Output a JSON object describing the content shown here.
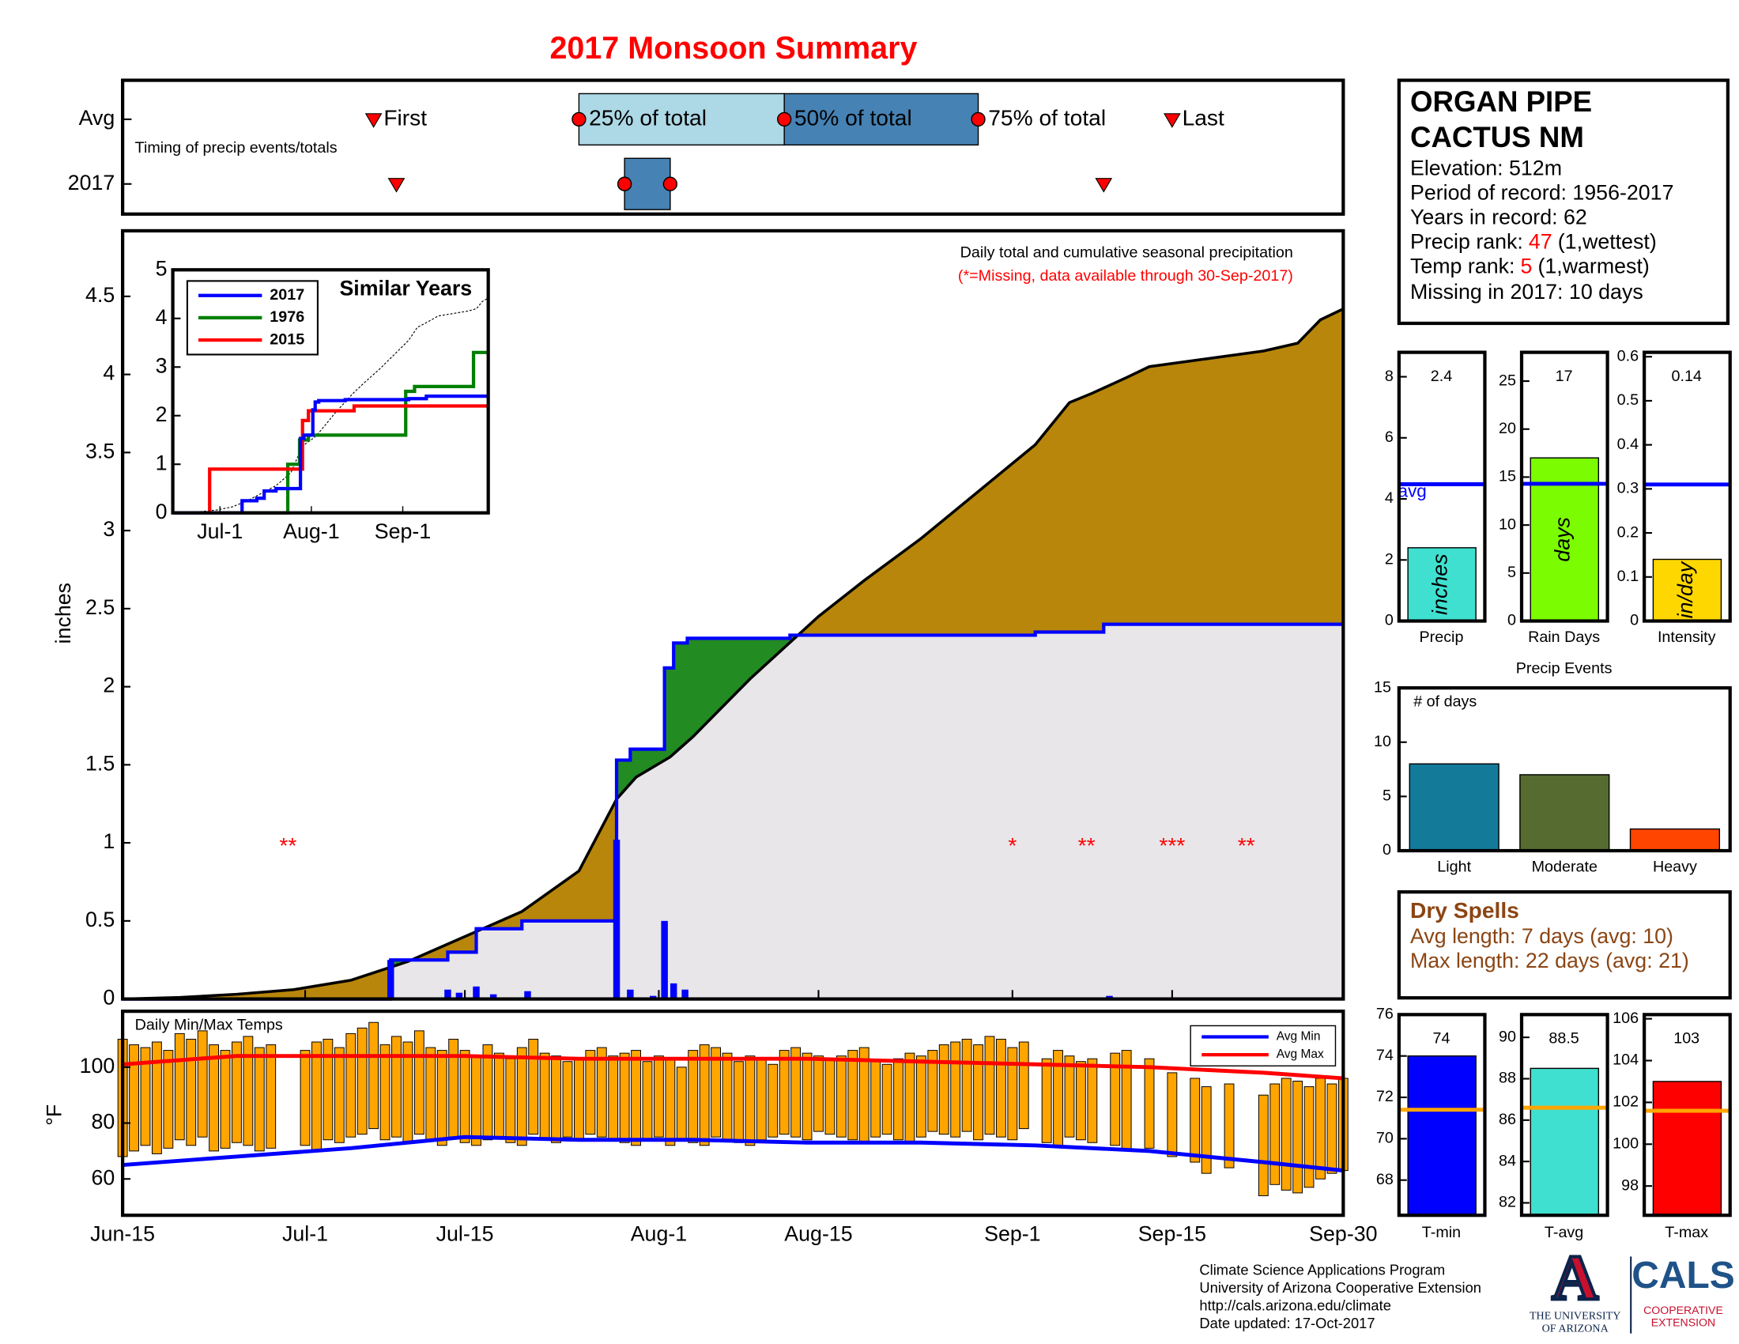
{
  "title": "2017 Monsoon Summary",
  "chart_data": [
    {
      "type": "timeline",
      "label": "Timing of precip events/totals",
      "box_colors": [
        "#add8e6",
        "#4682b4"
      ],
      "marker_color": "#ff0000",
      "rows": [
        {
          "name": "Avg",
          "first": 22,
          "p25": 40,
          "p50": 58,
          "p75": 75,
          "last": 92,
          "labels": {
            "first": "First",
            "p25": "25% of total",
            "p50": "50% of total",
            "p75": "75% of total",
            "last": "Last"
          }
        },
        {
          "name": "2017",
          "first": 24,
          "p25": 44,
          "p50": 44,
          "p75": 48,
          "last": 86
        }
      ]
    },
    {
      "type": "area",
      "title": "Daily total and cumulative seasonal precipitation",
      "subtitle": "(*=Missing, data available through 30-Sep-2017)",
      "ylabel": "inches",
      "xlim": [
        0,
        107
      ],
      "xticks": [
        {
          "value": 0,
          "label": "Jun-15"
        },
        {
          "value": 16,
          "label": "Jul-1"
        },
        {
          "value": 30,
          "label": "Jul-15"
        },
        {
          "value": 47,
          "label": "Aug-1"
        },
        {
          "value": 61,
          "label": "Aug-15"
        },
        {
          "value": 78,
          "label": "Sep-1"
        },
        {
          "value": 92,
          "label": "Sep-15"
        },
        {
          "value": 107,
          "label": "Sep-30"
        }
      ],
      "ylim": [
        0,
        4.92
      ],
      "yticks": [
        0,
        0.5,
        1,
        1.5,
        2,
        2.5,
        3,
        3.5,
        4,
        4.5
      ],
      "above_color": "#228b22",
      "below_color": "#e8e6e8",
      "series": [
        {
          "color": "#b8860b",
          "x": [
            0,
            5,
            10,
            15,
            20,
            25,
            30,
            35,
            40,
            43.3,
            45,
            48,
            50,
            55,
            58,
            61,
            65,
            70,
            75,
            80,
            83,
            85,
            88,
            90,
            95,
            100,
            103,
            105,
            107
          ],
          "values": [
            0,
            0.01,
            0.03,
            0.06,
            0.12,
            0.24,
            0.4,
            0.56,
            0.82,
            1.28,
            1.42,
            1.55,
            1.68,
            2.05,
            2.25,
            2.45,
            2.68,
            2.95,
            3.25,
            3.55,
            3.82,
            3.88,
            3.98,
            4.05,
            4.1,
            4.15,
            4.2,
            4.35,
            4.42
          ]
        },
        {
          "name": "2017",
          "color": "#0000ff",
          "x": [
            0,
            23.5,
            23.5,
            28.5,
            28.5,
            31,
            31,
            35,
            35,
            43.3,
            43.3,
            44.5,
            44.5,
            47.5,
            47.5,
            48.3,
            48.3,
            49.5,
            49.5,
            58.5,
            58.5,
            80,
            80,
            86,
            86,
            107
          ],
          "values": [
            0,
            0,
            0.25,
            0.25,
            0.3,
            0.3,
            0.45,
            0.45,
            0.5,
            0.5,
            1.53,
            1.53,
            1.6,
            1.6,
            2.12,
            2.12,
            2.28,
            2.28,
            2.31,
            2.31,
            2.33,
            2.33,
            2.35,
            2.35,
            2.4,
            2.4
          ]
        },
        {
          "color": "#0000ff",
          "x": [
            23.5,
            28.5,
            29.5,
            31,
            32.5,
            35.5,
            43.3,
            44.5,
            46.5,
            47.5,
            48.3,
            49.3,
            82.5,
            86.5
          ],
          "values": [
            0.25,
            0.06,
            0.04,
            0.08,
            0.03,
            0.05,
            1.02,
            0.06,
            0.02,
            0.5,
            0.1,
            0.06,
            0.01,
            0.02
          ]
        }
      ],
      "missing": [
        {
          "x": 14.5,
          "label": "**"
        },
        {
          "x": 78,
          "label": "*"
        },
        {
          "x": 84.5,
          "label": "**"
        },
        {
          "x": 92,
          "label": "***"
        },
        {
          "x": 98.5,
          "label": "**"
        }
      ]
    },
    {
      "type": "line",
      "title": "Similar Years",
      "xticks": [
        {
          "value": 16,
          "label": "Jul-1"
        },
        {
          "value": 47,
          "label": "Aug-1"
        },
        {
          "value": 78,
          "label": "Sep-1"
        }
      ],
      "ylim": [
        0,
        5
      ],
      "yticks": [
        0,
        1,
        2,
        3,
        4,
        5
      ],
      "series": [
        {
          "name": "1976",
          "color": "#008000",
          "x": [
            23.8,
            39,
            39,
            43,
            43,
            46,
            46,
            79,
            79,
            82,
            82,
            102,
            102,
            107
          ],
          "values": [
            0,
            0,
            1.0,
            1.0,
            1.5,
            1.5,
            1.6,
            1.6,
            2.5,
            2.5,
            2.6,
            2.6,
            3.3,
            3.3
          ]
        },
        {
          "name": "2015",
          "color": "#ff0000",
          "x": [
            12.5,
            12.5,
            44,
            44,
            46,
            46,
            61.5,
            61.5,
            107
          ],
          "values": [
            0,
            0.9,
            0.9,
            1.9,
            1.9,
            2.1,
            2.1,
            2.2,
            2.2
          ]
        }
      ]
    },
    {
      "type": "range-bar",
      "title": "Daily Min/Max Temps",
      "ylabel": "°F",
      "color": "#ffa500",
      "ylim": [
        47,
        120
      ],
      "yticks": [
        60,
        80,
        100
      ],
      "x": [
        0,
        1,
        2,
        3,
        4,
        5,
        6,
        7,
        8,
        9,
        10,
        11,
        12,
        13,
        14,
        15,
        16,
        17,
        18,
        19,
        20,
        21,
        22,
        23,
        24,
        25,
        26,
        27,
        28,
        29,
        30,
        31,
        32,
        33,
        34,
        35,
        36,
        37,
        38,
        39,
        40,
        41,
        42,
        43,
        44,
        45,
        46,
        47,
        48,
        49,
        50,
        51,
        52,
        53,
        54,
        55,
        56,
        57,
        58,
        59,
        60,
        61,
        62,
        63,
        64,
        65,
        66,
        67,
        68,
        69,
        70,
        71,
        72,
        73,
        74,
        75,
        76,
        77,
        78,
        79,
        80,
        81,
        82,
        83,
        84,
        85,
        86,
        87,
        88,
        89,
        90,
        91,
        92,
        93,
        94,
        95,
        96,
        97,
        98,
        99,
        100,
        101,
        102,
        103,
        104,
        105,
        106,
        107
      ],
      "max": [
        110,
        108,
        107,
        109,
        106,
        112,
        110,
        113,
        108,
        106,
        109,
        111,
        107,
        108,
        null,
        null,
        106,
        109,
        110,
        107,
        112,
        114,
        116,
        108,
        111,
        109,
        113,
        107,
        106,
        110,
        106,
        104,
        108,
        105,
        103,
        107,
        110,
        105,
        104,
        102,
        103,
        106,
        107,
        104,
        105,
        106,
        102,
        104,
        103,
        100,
        106,
        108,
        107,
        105,
        102,
        104,
        103,
        101,
        106,
        107,
        105,
        104,
        103,
        104,
        106,
        107,
        102,
        101,
        103,
        105,
        104,
        106,
        108,
        109,
        110,
        108,
        111,
        110,
        107,
        109,
        null,
        103,
        106,
        104,
        102,
        103,
        null,
        105,
        106,
        null,
        103,
        null,
        98,
        null,
        96,
        93,
        null,
        94,
        null,
        null,
        90,
        94,
        96,
        95,
        93,
        96,
        94,
        96
      ],
      "min": [
        68,
        70,
        72,
        69,
        71,
        74,
        72,
        75,
        70,
        71,
        73,
        72,
        70,
        71,
        null,
        null,
        72,
        70,
        74,
        73,
        75,
        76,
        78,
        74,
        75,
        73,
        76,
        74,
        72,
        75,
        73,
        72,
        74,
        75,
        73,
        72,
        76,
        74,
        73,
        75,
        74,
        76,
        75,
        74,
        73,
        72,
        74,
        75,
        72,
        74,
        73,
        72,
        75,
        74,
        73,
        72,
        74,
        75,
        76,
        75,
        74,
        77,
        76,
        75,
        74,
        73,
        75,
        76,
        74,
        73,
        75,
        77,
        76,
        75,
        77,
        74,
        76,
        75,
        74,
        78,
        null,
        73,
        72,
        75,
        74,
        73,
        null,
        72,
        70,
        null,
        71,
        null,
        68,
        null,
        66,
        62,
        null,
        64,
        null,
        null,
        54,
        58,
        56,
        55,
        57,
        60,
        62,
        63
      ],
      "series": [
        {
          "name": "Avg Min",
          "color": "#0000ff",
          "x": [
            0,
            10,
            20,
            30,
            40,
            50,
            60,
            70,
            80,
            90,
            100,
            107
          ],
          "values": [
            65,
            68,
            71,
            75,
            74,
            74,
            73,
            73,
            72,
            70,
            66,
            63
          ]
        },
        {
          "name": "Avg Max",
          "color": "#ff0000",
          "x": [
            0,
            10,
            20,
            30,
            40,
            50,
            60,
            70,
            80,
            90,
            100,
            107
          ],
          "values": [
            101,
            104,
            104,
            104,
            103,
            103,
            103,
            102,
            101,
            100,
            98,
            96
          ]
        }
      ]
    },
    {
      "type": "gauge",
      "label": "Precip",
      "unit": "inches",
      "value": 2.4,
      "avg": 4.48,
      "avg_label": "avg",
      "avg_color": "#0000ff",
      "color": "#40e0d0",
      "ylim": [
        0,
        8.8
      ],
      "yticks": [
        0,
        2,
        4,
        6,
        8
      ]
    },
    {
      "type": "gauge",
      "label": "Rain Days",
      "unit": "days",
      "value": 17,
      "avg": 14.3,
      "avg_color": "#0000ff",
      "color": "#7cfc00",
      "ylim": [
        0,
        28
      ],
      "yticks": [
        0,
        5,
        10,
        15,
        20,
        25
      ]
    },
    {
      "type": "gauge",
      "label": "Intensity",
      "unit": "in/day",
      "value": 0.14,
      "avg": 0.31,
      "avg_color": "#0000ff",
      "color": "#ffd700",
      "ylim": [
        0,
        0.61
      ],
      "yticks": [
        0,
        0.1,
        0.2,
        0.3,
        0.4,
        0.5,
        0.6
      ]
    },
    {
      "type": "bar",
      "title": "Precip Events",
      "ylabel": "# of days",
      "categories": [
        "Light",
        "Moderate",
        "Heavy"
      ],
      "values": [
        8,
        7,
        2
      ],
      "colors": [
        "#137a9a",
        "#556b2f",
        "#ff4500"
      ],
      "ylim": [
        0,
        15
      ],
      "yticks": [
        0,
        5,
        10,
        15
      ]
    },
    {
      "type": "gauge",
      "label": "T-min",
      "value": 74,
      "avg": 71.4,
      "avg_color": "#ffa500",
      "color": "#0000ff",
      "ylim": [
        66.3,
        76
      ],
      "yticks": [
        68,
        70,
        72,
        74,
        76
      ]
    },
    {
      "type": "gauge",
      "label": "T-avg",
      "value": 88.5,
      "avg": 86.6,
      "avg_color": "#ffa500",
      "color": "#40e0d0",
      "ylim": [
        81.4,
        91.1
      ],
      "yticks": [
        82,
        84,
        86,
        88,
        90
      ]
    },
    {
      "type": "gauge",
      "label": "T-max",
      "value": 103,
      "avg": 101.6,
      "avg_color": "#ffa500",
      "color": "#ff0000",
      "ylim": [
        96.6,
        106.2
      ],
      "yticks": [
        98,
        100,
        102,
        104,
        106
      ]
    }
  ],
  "station": {
    "name": [
      "ORGAN PIPE",
      "CACTUS NM"
    ],
    "info": [
      "Elevation: 512m",
      "Period of record: 1956-2017",
      "Years in record: 62"
    ],
    "ranks": [
      {
        "label": "Precip rank:",
        "value": 47,
        "note": "(1,wettest)"
      },
      {
        "label": "Temp rank:",
        "value": 5,
        "note": "(1,warmest)"
      }
    ],
    "missing": "Missing in 2017: 10 days",
    "rank_color": "#ff0000"
  },
  "dry_spells": {
    "title": "Dry Spells",
    "lines": [
      "Avg length: 7 days (avg: 10)",
      "Max length: 22 days (avg: 21)"
    ],
    "color": "#8b4513"
  },
  "footer": {
    "lines": [
      "Climate Science Applications Program",
      "University of Arizona Cooperative Extension",
      "http://cals.arizona.edu/climate",
      "Date updated: 17-Oct-2017"
    ],
    "logo": {
      "mark": "A",
      "university": [
        "THE UNIVERSITY",
        "OF ARIZONA"
      ],
      "cals": "CALS",
      "extension": [
        "COOPERATIVE",
        "EXTENSION"
      ]
    }
  }
}
